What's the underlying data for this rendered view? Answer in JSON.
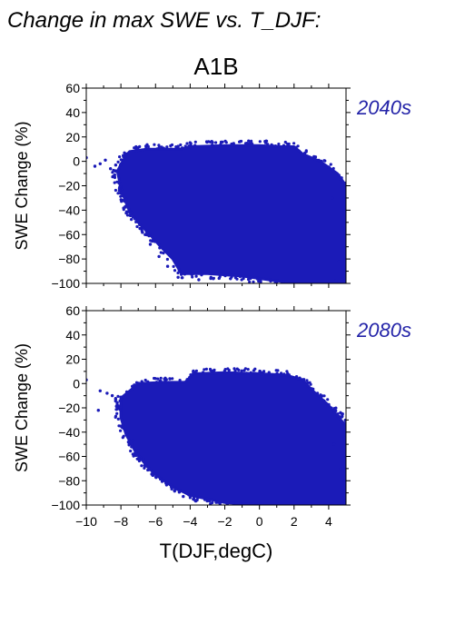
{
  "title": "Change in max SWE vs. T_DJF:",
  "scenario": "A1B",
  "xlabel": "T(DJF,degC)",
  "colors": {
    "points": "#1b1bb8",
    "period_label": "#2323a8",
    "axes": "#000000"
  },
  "chart_data": [
    {
      "type": "scatter",
      "period": "2040s",
      "xlabel": "",
      "ylabel": "SWE Change (%)",
      "xlim": [
        -10,
        5
      ],
      "ylim": [
        -100,
        60
      ],
      "xticks": [
        -10,
        -8,
        -6,
        -4,
        -2,
        0,
        2,
        4
      ],
      "yticks": [
        60,
        40,
        20,
        0,
        -20,
        -40,
        -60,
        -80,
        -100
      ],
      "yticklabels": [
        "60",
        "40",
        "20",
        "0",
        "−20",
        "−40",
        "−60",
        "−80",
        "−100"
      ],
      "show_xticklabels": false,
      "grid": false,
      "cloud_envelope": [
        [
          -7.7,
          5
        ],
        [
          -7.5,
          8
        ],
        [
          -6.5,
          10
        ],
        [
          -4.5,
          10
        ],
        [
          -4.0,
          12
        ],
        [
          -2,
          13
        ],
        [
          0,
          13
        ],
        [
          1.2,
          12
        ],
        [
          2,
          12
        ],
        [
          2.5,
          6
        ],
        [
          3.5,
          0
        ],
        [
          4.5,
          -10
        ],
        [
          5,
          -20
        ],
        [
          5,
          -100
        ],
        [
          2.5,
          -100
        ],
        [
          1,
          -98
        ],
        [
          -1,
          -94
        ],
        [
          -3,
          -92
        ],
        [
          -4.5,
          -92
        ],
        [
          -5,
          -80
        ],
        [
          -5.7,
          -70
        ],
        [
          -6.2,
          -62
        ],
        [
          -7,
          -50
        ],
        [
          -7.6,
          -38
        ],
        [
          -8,
          -22
        ],
        [
          -8.2,
          -8
        ]
      ],
      "core_envelope": [
        [
          -5.5,
          2
        ],
        [
          -3,
          8
        ],
        [
          0,
          10
        ],
        [
          1.5,
          6
        ],
        [
          3,
          -10
        ],
        [
          4,
          -40
        ],
        [
          4,
          -95
        ],
        [
          1,
          -95
        ],
        [
          -2,
          -88
        ],
        [
          -4,
          -72
        ],
        [
          -5.5,
          -45
        ],
        [
          -6.5,
          -20
        ]
      ],
      "sparse_points": [
        [
          -10,
          3
        ],
        [
          -9.5,
          -4
        ],
        [
          -9.2,
          -2
        ],
        [
          -8.9,
          1
        ],
        [
          -8.6,
          -6
        ],
        [
          -8.4,
          -12
        ],
        [
          -8.3,
          -3
        ],
        [
          -8.1,
          -18
        ],
        [
          -7.9,
          -25
        ],
        [
          -7.7,
          -31
        ],
        [
          -7.4,
          -42
        ],
        [
          -7.2,
          -47
        ],
        [
          -6.9,
          -55
        ],
        [
          -6.6,
          -60
        ],
        [
          -6.3,
          -68
        ],
        [
          -5.8,
          -78
        ],
        [
          -5.3,
          -86
        ],
        [
          -4.7,
          -95
        ],
        [
          -3.5,
          -97
        ],
        [
          -2.8,
          -95
        ],
        [
          4.7,
          -15
        ],
        [
          4.9,
          -30
        ],
        [
          4.8,
          -55
        ],
        [
          4.9,
          -70
        ],
        [
          4.6,
          -82
        ],
        [
          5,
          -88
        ],
        [
          4.4,
          -98
        ],
        [
          3.9,
          -100
        ],
        [
          4.9,
          -40
        ],
        [
          4.2,
          -30
        ]
      ]
    },
    {
      "type": "scatter",
      "period": "2080s",
      "xlabel": "T(DJF,degC)",
      "ylabel": "SWE Change (%)",
      "xlim": [
        -10,
        5
      ],
      "ylim": [
        -100,
        60
      ],
      "xticks": [
        -10,
        -8,
        -6,
        -4,
        -2,
        0,
        2,
        4
      ],
      "xticklabels": [
        "−10",
        "−8",
        "−6",
        "−4",
        "−2",
        "0",
        "2",
        "4"
      ],
      "yticks": [
        60,
        40,
        20,
        0,
        -20,
        -40,
        -60,
        -80,
        -100
      ],
      "yticklabels": [
        "60",
        "40",
        "20",
        "0",
        "−20",
        "−40",
        "−60",
        "−80",
        "−100"
      ],
      "show_xticklabels": true,
      "grid": false,
      "cloud_envelope": [
        [
          -7.4,
          -5
        ],
        [
          -7,
          0
        ],
        [
          -5.5,
          1
        ],
        [
          -4.3,
          1
        ],
        [
          -3.8,
          8
        ],
        [
          -2,
          9
        ],
        [
          0,
          8
        ],
        [
          1.5,
          7
        ],
        [
          2.5,
          3
        ],
        [
          3,
          -5
        ],
        [
          4,
          -18
        ],
        [
          5,
          -35
        ],
        [
          5,
          -100
        ],
        [
          2,
          -100
        ],
        [
          0,
          -100
        ],
        [
          -2,
          -98
        ],
        [
          -4,
          -92
        ],
        [
          -5,
          -85
        ],
        [
          -6,
          -75
        ],
        [
          -6.5,
          -68
        ],
        [
          -7.2,
          -55
        ],
        [
          -7.7,
          -42
        ],
        [
          -8,
          -28
        ],
        [
          -8,
          -12
        ]
      ],
      "core_envelope": [
        [
          -5.5,
          -10
        ],
        [
          -3,
          2
        ],
        [
          0,
          3
        ],
        [
          2,
          -8
        ],
        [
          3.2,
          -25
        ],
        [
          4,
          -60
        ],
        [
          4,
          -98
        ],
        [
          0,
          -99
        ],
        [
          -3,
          -92
        ],
        [
          -5,
          -78
        ],
        [
          -6,
          -55
        ],
        [
          -6.5,
          -30
        ]
      ],
      "sparse_points": [
        [
          -10,
          3
        ],
        [
          -9.2,
          -6
        ],
        [
          -8.8,
          -8
        ],
        [
          -8.5,
          -10
        ],
        [
          -8.3,
          -13
        ],
        [
          -8.1,
          -20
        ],
        [
          -9.3,
          -22
        ],
        [
          -8.0,
          -35
        ],
        [
          -7.6,
          -40
        ],
        [
          -7.3,
          -47
        ],
        [
          -7.0,
          -55
        ],
        [
          -6.7,
          -62
        ],
        [
          -6.3,
          -70
        ],
        [
          -5.9,
          -76
        ],
        [
          -5.4,
          -82
        ],
        [
          -4.9,
          -88
        ],
        [
          -4.4,
          -93
        ],
        [
          -3.6,
          -96
        ],
        [
          4.8,
          -25
        ],
        [
          4.9,
          -45
        ],
        [
          5,
          -60
        ],
        [
          4.7,
          -70
        ],
        [
          4.9,
          -80
        ],
        [
          4.8,
          -92
        ],
        [
          5,
          -96
        ],
        [
          4.6,
          -100
        ],
        [
          3.8,
          -100
        ],
        [
          4.3,
          -50
        ]
      ]
    }
  ]
}
